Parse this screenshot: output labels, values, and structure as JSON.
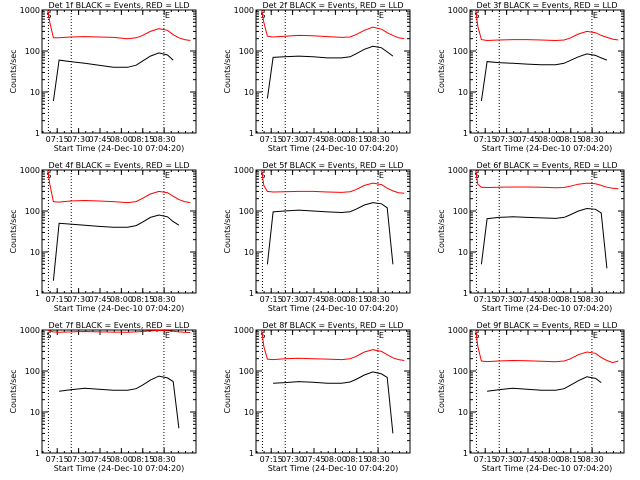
{
  "chart_data": [
    {
      "type": "line",
      "title": "Det 1f BLACK = Events, RED = LLD",
      "xlabel": "Start Time (24-Dec-10 07:04:20)",
      "ylabel": "Counts/sec",
      "yscale": "log",
      "ylim": [
        1,
        1000
      ],
      "xticks": [
        "07:15",
        "07:30",
        "07:45",
        "08:00",
        "08:15",
        "08:30"
      ],
      "yticks": [
        "1",
        "10",
        "100",
        "1000"
      ],
      "markers": [
        "S",
        "E"
      ],
      "x_minutes": [
        4,
        5.5,
        8,
        12,
        20,
        30,
        40,
        50,
        60,
        66,
        70,
        76,
        82,
        88,
        92,
        96,
        100,
        104
      ],
      "series": [
        {
          "name": "RED = LLD",
          "color": "#ff0000",
          "values": [
            1000,
            500,
            210,
            210,
            220,
            225,
            220,
            215,
            200,
            210,
            235,
            300,
            350,
            320,
            250,
            210,
            190,
            180
          ]
        },
        {
          "name": "BLACK = Events",
          "color": "#000000",
          "values": [
            null,
            null,
            6,
            60,
            55,
            50,
            45,
            40,
            40,
            45,
            55,
            75,
            90,
            80,
            60,
            null,
            null,
            null
          ]
        }
      ]
    },
    {
      "type": "line",
      "title": "Det 2f BLACK = Events, RED = LLD",
      "xlabel": "Start Time (24-Dec-10 07:04:20)",
      "ylabel": "Counts/sec",
      "yscale": "log",
      "ylim": [
        1,
        1000
      ],
      "xticks": [
        "07:15",
        "07:30",
        "07:45",
        "08:00",
        "08:15",
        "08:30"
      ],
      "yticks": [
        "1",
        "10",
        "100",
        "1000"
      ],
      "markers": [
        "S",
        "E"
      ],
      "x_minutes": [
        4,
        5.5,
        8,
        12,
        20,
        30,
        40,
        50,
        60,
        66,
        70,
        76,
        82,
        88,
        92,
        96,
        100,
        104
      ],
      "series": [
        {
          "name": "RED = LLD",
          "color": "#ff0000",
          "values": [
            1000,
            500,
            230,
            220,
            230,
            240,
            235,
            225,
            215,
            220,
            250,
            320,
            380,
            340,
            280,
            240,
            210,
            200
          ]
        },
        {
          "name": "BLACK = Events",
          "color": "#000000",
          "values": [
            null,
            null,
            7,
            70,
            72,
            75,
            72,
            68,
            68,
            72,
            85,
            110,
            130,
            120,
            95,
            75,
            null,
            null
          ]
        }
      ]
    },
    {
      "type": "line",
      "title": "Det 3f BLACK = Events, RED = LLD",
      "xlabel": "Start Time (24-Dec-10 07:04:20)",
      "ylabel": "Counts/sec",
      "yscale": "log",
      "ylim": [
        1,
        1000
      ],
      "xticks": [
        "07:15",
        "07:30",
        "07:45",
        "08:00",
        "08:15",
        "08:30"
      ],
      "yticks": [
        "1",
        "10",
        "100",
        "1000"
      ],
      "markers": [
        "S",
        "E"
      ],
      "x_minutes": [
        4,
        5.5,
        8,
        12,
        20,
        30,
        40,
        50,
        60,
        66,
        70,
        76,
        82,
        88,
        92,
        96,
        100,
        104
      ],
      "series": [
        {
          "name": "RED = LLD",
          "color": "#ff0000",
          "values": [
            1000,
            400,
            190,
            180,
            185,
            190,
            190,
            185,
            180,
            185,
            205,
            260,
            300,
            280,
            240,
            215,
            195,
            185
          ]
        },
        {
          "name": "BLACK = Events",
          "color": "#000000",
          "values": [
            null,
            null,
            6,
            55,
            52,
            50,
            48,
            46,
            46,
            50,
            58,
            72,
            85,
            78,
            68,
            60,
            null,
            null
          ]
        }
      ]
    },
    {
      "type": "line",
      "title": "Det 4f BLACK = Events, RED = LLD",
      "xlabel": "Start Time (24-Dec-10 07:04:20)",
      "ylabel": "Counts/sec",
      "yscale": "log",
      "ylim": [
        1,
        1000
      ],
      "xticks": [
        "07:15",
        "07:30",
        "07:45",
        "08:00",
        "08:15",
        "08:30"
      ],
      "yticks": [
        "1",
        "10",
        "100",
        "1000"
      ],
      "markers": [
        "S",
        "E"
      ],
      "x_minutes": [
        4,
        5.5,
        8,
        12,
        20,
        30,
        40,
        50,
        60,
        66,
        70,
        76,
        82,
        88,
        92,
        96,
        100,
        104
      ],
      "series": [
        {
          "name": "RED = LLD",
          "color": "#ff0000",
          "values": [
            1000,
            450,
            170,
            165,
            175,
            180,
            175,
            170,
            160,
            170,
            200,
            260,
            300,
            280,
            230,
            190,
            170,
            160
          ]
        },
        {
          "name": "BLACK = Events",
          "color": "#000000",
          "values": [
            null,
            null,
            2,
            50,
            48,
            45,
            42,
            40,
            40,
            44,
            52,
            70,
            80,
            72,
            55,
            45,
            null,
            null
          ]
        }
      ]
    },
    {
      "type": "line",
      "title": "Det 5f BLACK = Events, RED = LLD",
      "xlabel": "Start Time (24-Dec-10 07:04:20)",
      "ylabel": "Counts/sec",
      "yscale": "log",
      "ylim": [
        1,
        1000
      ],
      "xticks": [
        "07:15",
        "07:30",
        "07:45",
        "08:00",
        "08:15",
        "08:30"
      ],
      "yticks": [
        "1",
        "10",
        "100",
        "1000"
      ],
      "markers": [
        "S",
        "E"
      ],
      "x_minutes": [
        4,
        5.5,
        8,
        12,
        20,
        30,
        40,
        50,
        60,
        66,
        70,
        76,
        82,
        88,
        92,
        96,
        100,
        104
      ],
      "series": [
        {
          "name": "RED = LLD",
          "color": "#ff0000",
          "values": [
            1000,
            420,
            300,
            290,
            295,
            300,
            300,
            290,
            285,
            295,
            330,
            420,
            480,
            440,
            360,
            310,
            280,
            270
          ]
        },
        {
          "name": "BLACK = Events",
          "color": "#000000",
          "values": [
            null,
            null,
            5,
            95,
            100,
            105,
            100,
            95,
            92,
            96,
            110,
            140,
            160,
            150,
            120,
            5,
            null,
            null
          ]
        }
      ]
    },
    {
      "type": "line",
      "title": "Det 6f BLACK = Events, RED = LLD",
      "xlabel": "Start Time (24-Dec-10 07:04:20)",
      "ylabel": "Counts/sec",
      "yscale": "log",
      "ylim": [
        1,
        1000
      ],
      "xticks": [
        "07:15",
        "07:30",
        "07:45",
        "08:00",
        "08:15",
        "08:30"
      ],
      "yticks": [
        "1",
        "10",
        "100",
        "1000"
      ],
      "markers": [
        "S",
        "E"
      ],
      "x_minutes": [
        4,
        5.5,
        8,
        12,
        20,
        30,
        40,
        50,
        60,
        66,
        70,
        76,
        82,
        88,
        92,
        96,
        100,
        104
      ],
      "series": [
        {
          "name": "RED = LLD",
          "color": "#ff0000",
          "values": [
            1000,
            450,
            380,
            375,
            380,
            385,
            385,
            380,
            370,
            375,
            400,
            450,
            480,
            460,
            420,
            380,
            360,
            350
          ]
        },
        {
          "name": "BLACK = Events",
          "color": "#000000",
          "values": [
            null,
            null,
            5,
            65,
            70,
            72,
            70,
            68,
            66,
            70,
            80,
            100,
            115,
            110,
            90,
            4,
            null,
            null
          ]
        }
      ]
    },
    {
      "type": "line",
      "title": "Det 7f BLACK = Events, RED = LLD",
      "xlabel": "Start Time (24-Dec-10 07:04:20)",
      "ylabel": "Counts/sec",
      "yscale": "log",
      "ylim": [
        1,
        1000
      ],
      "xticks": [
        "07:15",
        "07:30",
        "07:45",
        "08:00",
        "08:15",
        "08:30"
      ],
      "yticks": [
        "1",
        "10",
        "100",
        "1000"
      ],
      "markers": [
        "S",
        "E"
      ],
      "x_minutes": [
        4,
        5.5,
        8,
        12,
        20,
        30,
        40,
        50,
        60,
        66,
        70,
        76,
        82,
        88,
        92,
        96,
        100,
        104
      ],
      "series": [
        {
          "name": "RED = LLD",
          "color": "#ff0000",
          "values": [
            1000,
            950,
            900,
            880,
            900,
            920,
            900,
            890,
            880,
            900,
            920,
            950,
            980,
            960,
            930,
            900,
            880,
            870
          ]
        },
        {
          "name": "BLACK = Events",
          "color": "#000000",
          "values": [
            null,
            null,
            null,
            32,
            35,
            38,
            36,
            34,
            34,
            37,
            44,
            60,
            75,
            68,
            55,
            4,
            null,
            null
          ]
        }
      ]
    },
    {
      "type": "line",
      "title": "Det 8f BLACK = Events, RED = LLD",
      "xlabel": "Start Time (24-Dec-10 07:04:20)",
      "ylabel": "Counts/sec",
      "yscale": "log",
      "ylim": [
        1,
        1000
      ],
      "xticks": [
        "07:15",
        "07:30",
        "07:45",
        "08:00",
        "08:15",
        "08:30"
      ],
      "yticks": [
        "1",
        "10",
        "100",
        "1000"
      ],
      "markers": [
        "S",
        "E"
      ],
      "x_minutes": [
        4,
        5.5,
        8,
        12,
        20,
        30,
        40,
        50,
        60,
        66,
        70,
        76,
        82,
        88,
        92,
        96,
        100,
        104
      ],
      "series": [
        {
          "name": "RED = LLD",
          "color": "#ff0000",
          "values": [
            1000,
            400,
            195,
            190,
            200,
            205,
            200,
            195,
            190,
            200,
            225,
            290,
            330,
            300,
            250,
            210,
            190,
            180
          ]
        },
        {
          "name": "BLACK = Events",
          "color": "#000000",
          "values": [
            null,
            null,
            null,
            50,
            52,
            55,
            53,
            50,
            50,
            54,
            62,
            80,
            95,
            85,
            70,
            3,
            null,
            null
          ]
        }
      ]
    },
    {
      "type": "line",
      "title": "Det 9f BLACK = Events, RED = LLD",
      "xlabel": "Start Time (24-Dec-10 07:04:20)",
      "ylabel": "Counts/sec",
      "yscale": "log",
      "ylim": [
        1,
        1000
      ],
      "xticks": [
        "07:15",
        "07:30",
        "07:45",
        "08:00",
        "08:15",
        "08:30"
      ],
      "yticks": [
        "1",
        "10",
        "100",
        "1000"
      ],
      "markers": [
        "S",
        "E"
      ],
      "x_minutes": [
        4,
        5.5,
        8,
        12,
        20,
        30,
        40,
        50,
        60,
        66,
        70,
        76,
        82,
        88,
        92,
        96,
        100,
        104
      ],
      "series": [
        {
          "name": "RED = LLD",
          "color": "#ff0000",
          "values": [
            1000,
            400,
            175,
            170,
            175,
            180,
            178,
            172,
            168,
            175,
            195,
            250,
            290,
            270,
            215,
            180,
            160,
            175
          ]
        },
        {
          "name": "BLACK = Events",
          "color": "#000000",
          "values": [
            null,
            null,
            null,
            32,
            35,
            38,
            36,
            34,
            34,
            37,
            44,
            58,
            72,
            66,
            52,
            null,
            null,
            null
          ]
        }
      ]
    }
  ]
}
